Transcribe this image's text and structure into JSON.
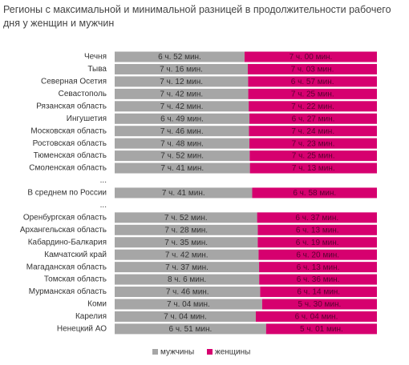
{
  "chart_data": {
    "type": "bar",
    "orientation": "horizontal",
    "stack": "percent",
    "title": "Регионы с максимальной и минимальной разницей в продолжительности рабочего дня у женщин и мужчин",
    "categories": [
      "Чечня",
      "Тыва",
      "Северная Осетия",
      "Севастополь",
      "Рязанская область",
      "Ингушетия",
      "Московская область",
      "Ростовская область",
      "Тюменская область",
      "Смоленская область",
      "...",
      "В среднем по России",
      "...",
      "Оренбургская область",
      "Архангельская область",
      "Кабардино-Балкария",
      "Камчатский край",
      "Магаданская область",
      "Томская область",
      "Мурманская область",
      "Коми",
      "Карелия",
      "Ненецкий АО"
    ],
    "series": [
      {
        "name": "мужчины",
        "color": "#a6a6a6",
        "values": [
          412,
          436,
          432,
          462,
          462,
          409,
          466,
          468,
          472,
          461,
          null,
          461,
          null,
          472,
          448,
          455,
          462,
          457,
          486,
          466,
          424,
          424,
          411
        ],
        "value_labels": [
          "6 ч. 52 мин.",
          "7 ч. 16 мин.",
          "7 ч. 12 мин.",
          "7 ч. 42 мин.",
          "7 ч. 42 мин.",
          "6 ч. 49 мин.",
          "7 ч. 46 мин.",
          "7 ч. 48 мин.",
          "7 ч. 52 мин.",
          "7 ч. 41 мин.",
          null,
          "7 ч. 41 мин.",
          null,
          "7 ч. 52 мин.",
          "7 ч. 28 мин.",
          "7 ч. 35 мин.",
          "7 ч. 42 мин.",
          "7 ч. 37 мин.",
          "8 ч. 6 мин.",
          "7 ч. 46 мин.",
          "7 ч. 04 мин.",
          "7 ч. 04 мин.",
          "6 ч. 51 мин."
        ]
      },
      {
        "name": "женщины",
        "color": "#d6006f",
        "values": [
          420,
          423,
          417,
          445,
          442,
          387,
          444,
          443,
          445,
          433,
          null,
          418,
          null,
          397,
          373,
          379,
          380,
          373,
          396,
          374,
          330,
          364,
          301
        ],
        "value_labels": [
          "7 ч. 00 мин.",
          "7 ч. 03 мин.",
          "6 ч. 57 мин.",
          "7 ч. 25 мин.",
          "7 ч. 22 мин.",
          "6 ч. 27 мин.",
          "7 ч. 24 мин.",
          "7 ч. 23 мин.",
          "7 ч. 25 мин.",
          "7 ч. 13 мин.",
          null,
          "6 ч. 58 мин.",
          null,
          "6 ч. 37 мин.",
          "6 ч. 13 мин.",
          "6 ч. 19 мин.",
          "6 ч. 20 мин.",
          "6 ч. 13 мин.",
          "6 ч. 36 мин.",
          "6 ч. 14 мин.",
          "5 ч. 30 мин.",
          "6 ч. 04 мин.",
          "5 ч. 01 мин."
        ]
      }
    ],
    "legend": "bottom"
  }
}
